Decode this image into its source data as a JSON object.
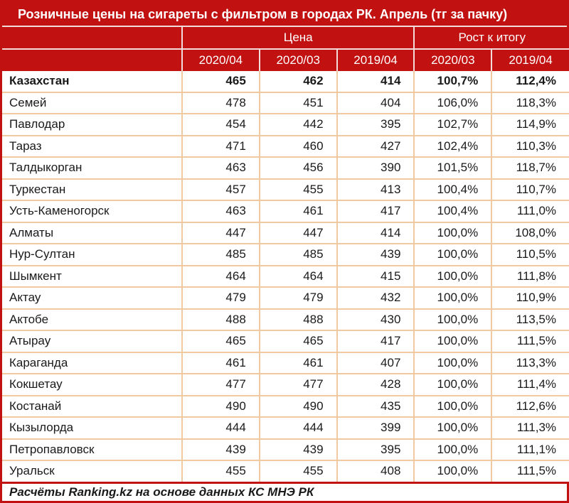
{
  "title": "Розничные цены на сигареты с фильтром в городах РК. Апрель (тг за пачку)",
  "header": {
    "price_group": "Цена",
    "growth_group": "Рост к итогу",
    "price_cols": [
      "2020/04",
      "2020/03",
      "2019/04"
    ],
    "growth_cols": [
      "2020/03",
      "2019/04"
    ]
  },
  "rows": [
    {
      "name": "Казахстан",
      "bold": true,
      "values": [
        "465",
        "462",
        "414",
        "100,7%",
        "112,4%"
      ]
    },
    {
      "name": "Семей",
      "bold": false,
      "values": [
        "478",
        "451",
        "404",
        "106,0%",
        "118,3%"
      ]
    },
    {
      "name": "Павлодар",
      "bold": false,
      "values": [
        "454",
        "442",
        "395",
        "102,7%",
        "114,9%"
      ]
    },
    {
      "name": "Тараз",
      "bold": false,
      "values": [
        "471",
        "460",
        "427",
        "102,4%",
        "110,3%"
      ]
    },
    {
      "name": "Талдыкорган",
      "bold": false,
      "values": [
        "463",
        "456",
        "390",
        "101,5%",
        "118,7%"
      ]
    },
    {
      "name": "Туркестан",
      "bold": false,
      "values": [
        "457",
        "455",
        "413",
        "100,4%",
        "110,7%"
      ]
    },
    {
      "name": "Усть-Каменогорск",
      "bold": false,
      "values": [
        "463",
        "461",
        "417",
        "100,4%",
        "111,0%"
      ]
    },
    {
      "name": "Алматы",
      "bold": false,
      "values": [
        "447",
        "447",
        "414",
        "100,0%",
        "108,0%"
      ]
    },
    {
      "name": "Нур-Султан",
      "bold": false,
      "values": [
        "485",
        "485",
        "439",
        "100,0%",
        "110,5%"
      ]
    },
    {
      "name": "Шымкент",
      "bold": false,
      "values": [
        "464",
        "464",
        "415",
        "100,0%",
        "111,8%"
      ]
    },
    {
      "name": "Актау",
      "bold": false,
      "values": [
        "479",
        "479",
        "432",
        "100,0%",
        "110,9%"
      ]
    },
    {
      "name": "Актобе",
      "bold": false,
      "values": [
        "488",
        "488",
        "430",
        "100,0%",
        "113,5%"
      ]
    },
    {
      "name": "Атырау",
      "bold": false,
      "values": [
        "465",
        "465",
        "417",
        "100,0%",
        "111,5%"
      ]
    },
    {
      "name": "Караганда",
      "bold": false,
      "values": [
        "461",
        "461",
        "407",
        "100,0%",
        "113,3%"
      ]
    },
    {
      "name": "Кокшетау",
      "bold": false,
      "values": [
        "477",
        "477",
        "428",
        "100,0%",
        "111,4%"
      ]
    },
    {
      "name": "Костанай",
      "bold": false,
      "values": [
        "490",
        "490",
        "435",
        "100,0%",
        "112,6%"
      ]
    },
    {
      "name": "Кызылорда",
      "bold": false,
      "values": [
        "444",
        "444",
        "399",
        "100,0%",
        "111,3%"
      ]
    },
    {
      "name": "Петропавловск",
      "bold": false,
      "values": [
        "439",
        "439",
        "395",
        "100,0%",
        "111,1%"
      ]
    },
    {
      "name": "Уральск",
      "bold": false,
      "values": [
        "455",
        "455",
        "408",
        "100,0%",
        "111,5%"
      ]
    }
  ],
  "footer": "Расчёты Ranking.kz на основе данных КС МНЭ РК",
  "colors": {
    "red": "#c11111",
    "header_divider": "#f2dcdb",
    "row_border": "#f0c9a1",
    "text": "#1a1a1a",
    "header_text": "#ffffff"
  },
  "chart_data": {
    "type": "table",
    "title": "Розничные цены на сигареты с фильтром в городах РК. Апрель (тг за пачку)",
    "column_groups": [
      {
        "label": "Цена",
        "span": 3
      },
      {
        "label": "Рост к итогу",
        "span": 2
      }
    ],
    "columns": [
      "2020/04",
      "2020/03",
      "2019/04",
      "2020/03 (рост)",
      "2019/04 (рост)"
    ],
    "rows": [
      [
        "Казахстан",
        465,
        462,
        414,
        "100,7%",
        "112,4%"
      ],
      [
        "Семей",
        478,
        451,
        404,
        "106,0%",
        "118,3%"
      ],
      [
        "Павлодар",
        454,
        442,
        395,
        "102,7%",
        "114,9%"
      ],
      [
        "Тараз",
        471,
        460,
        427,
        "102,4%",
        "110,3%"
      ],
      [
        "Талдыкорган",
        463,
        456,
        390,
        "101,5%",
        "118,7%"
      ],
      [
        "Туркестан",
        457,
        455,
        413,
        "100,4%",
        "110,7%"
      ],
      [
        "Усть-Каменогорск",
        463,
        461,
        417,
        "100,4%",
        "111,0%"
      ],
      [
        "Алматы",
        447,
        447,
        414,
        "100,0%",
        "108,0%"
      ],
      [
        "Нур-Султан",
        485,
        485,
        439,
        "100,0%",
        "110,5%"
      ],
      [
        "Шымкент",
        464,
        464,
        415,
        "100,0%",
        "111,8%"
      ],
      [
        "Актау",
        479,
        479,
        432,
        "100,0%",
        "110,9%"
      ],
      [
        "Актобе",
        488,
        488,
        430,
        "100,0%",
        "113,5%"
      ],
      [
        "Атырау",
        465,
        465,
        417,
        "100,0%",
        "111,5%"
      ],
      [
        "Караганда",
        461,
        461,
        407,
        "100,0%",
        "113,3%"
      ],
      [
        "Кокшетау",
        477,
        477,
        428,
        "100,0%",
        "111,4%"
      ],
      [
        "Костанай",
        490,
        490,
        435,
        "100,0%",
        "112,6%"
      ],
      [
        "Кызылорда",
        444,
        444,
        399,
        "100,0%",
        "111,3%"
      ],
      [
        "Петропавловск",
        439,
        439,
        395,
        "100,0%",
        "111,1%"
      ],
      [
        "Уральск",
        455,
        455,
        408,
        "100,0%",
        "111,5%"
      ]
    ],
    "footnote": "Расчёты Ranking.kz на основе данных КС МНЭ РК"
  }
}
